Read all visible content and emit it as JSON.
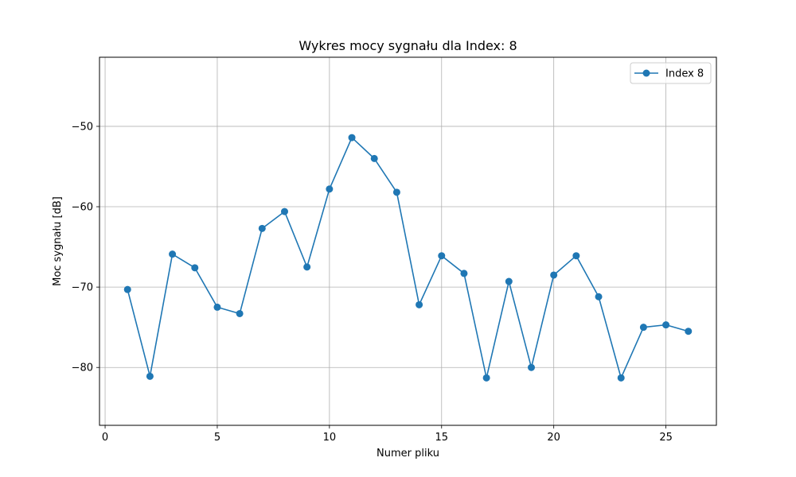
{
  "chart_data": {
    "type": "line",
    "title": "Wykres mocy sygnału dla Index: 8",
    "xlabel": "Numer pliku",
    "ylabel": "Moc sygnału [dB]",
    "xlim": [
      -0.25,
      27.25
    ],
    "ylim": [
      -87.2,
      -41.4
    ],
    "xticks": [
      0,
      5,
      10,
      15,
      20,
      25
    ],
    "xtick_labels": [
      "0",
      "5",
      "10",
      "15",
      "20",
      "25"
    ],
    "yticks": [
      -80,
      -70,
      -60,
      -50
    ],
    "ytick_labels": [
      "−80",
      "−70",
      "−60",
      "−50"
    ],
    "grid": true,
    "legend_position": "top-right",
    "series": [
      {
        "name": "Index 8",
        "color": "#1f77b4",
        "marker": "circle",
        "x": [
          1,
          2,
          3,
          4,
          5,
          6,
          7,
          8,
          9,
          10,
          11,
          12,
          13,
          14,
          15,
          16,
          17,
          18,
          19,
          20,
          21,
          22,
          23,
          24,
          25,
          26
        ],
        "y": [
          -70.3,
          -81.1,
          -65.9,
          -67.6,
          -72.5,
          -73.3,
          -62.7,
          -60.6,
          -67.5,
          -57.8,
          -51.4,
          -54.0,
          -58.2,
          -72.2,
          -66.1,
          -68.3,
          -81.3,
          -69.3,
          -80.0,
          -68.5,
          -66.1,
          -71.2,
          -81.3,
          -75.0,
          -74.7,
          -75.5
        ]
      }
    ]
  }
}
